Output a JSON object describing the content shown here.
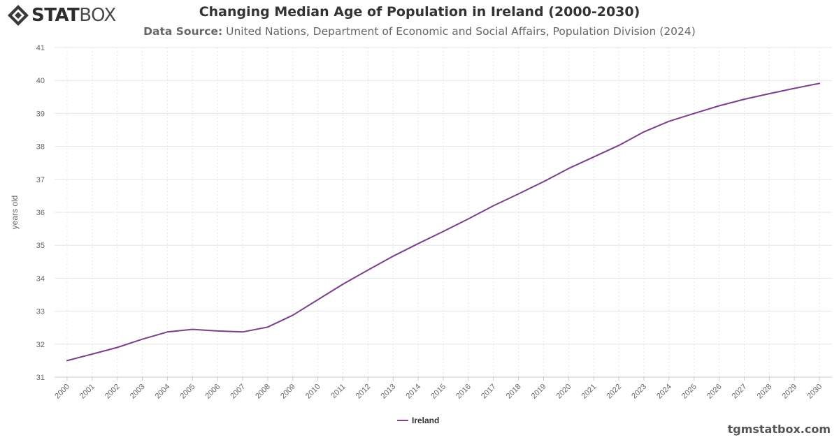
{
  "brand": {
    "logo_bold": "STAT",
    "logo_thin": "BOX",
    "watermark": "tgmstatbox.com"
  },
  "header": {
    "title": "Changing Median Age of Population in Ireland (2000-2030)",
    "subtitle_label": "Data Source:",
    "subtitle_text": "United Nations, Department of Economic and Social Affairs, Population Division (2024)"
  },
  "colors": {
    "series": "#7b3f8c",
    "grid": "#e6e6e6",
    "axis_text": "#666666"
  },
  "chart_data": {
    "type": "line",
    "title": "Changing Median Age of Population in Ireland (2000-2030)",
    "xlabel": "",
    "ylabel": "years old",
    "ylim": [
      31,
      41
    ],
    "yticks": [
      31,
      32,
      33,
      34,
      35,
      36,
      37,
      38,
      39,
      40,
      41
    ],
    "grid": true,
    "legend_position": "bottom-center",
    "categories": [
      "2000",
      "2001",
      "2002",
      "2003",
      "2004",
      "2005",
      "2006",
      "2007",
      "2008",
      "2009",
      "2010",
      "2011",
      "2012",
      "2013",
      "2014",
      "2015",
      "2016",
      "2017",
      "2018",
      "2019",
      "2020",
      "2021",
      "2022",
      "2023",
      "2024",
      "2025",
      "2026",
      "2027",
      "2028",
      "2029",
      "2030"
    ],
    "series": [
      {
        "name": "Ireland",
        "values": [
          31.5,
          31.7,
          31.9,
          32.15,
          32.37,
          32.45,
          32.4,
          32.37,
          32.52,
          32.88,
          33.35,
          33.82,
          34.25,
          34.67,
          35.05,
          35.42,
          35.8,
          36.2,
          36.56,
          36.93,
          37.33,
          37.68,
          38.03,
          38.44,
          38.76,
          39.0,
          39.23,
          39.43,
          39.6,
          39.76,
          39.91
        ]
      }
    ]
  }
}
